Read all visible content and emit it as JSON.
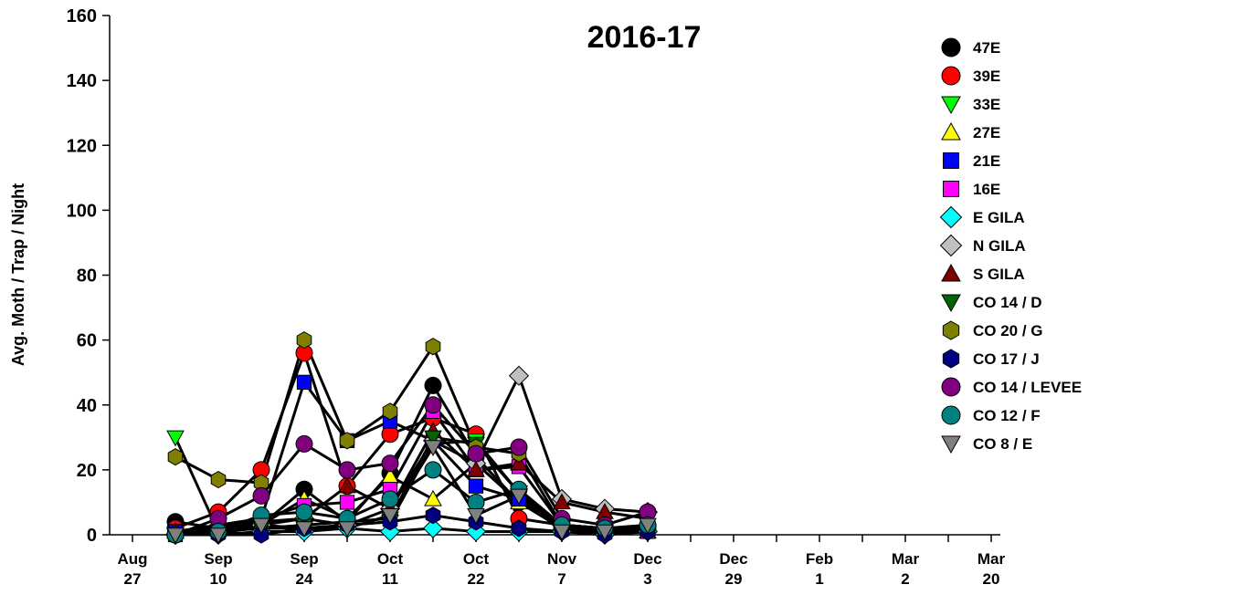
{
  "chart_data": {
    "type": "line",
    "title": "2016-17",
    "y_label": "Avg. Moth / Trap / Night",
    "categories": [
      "Aug 27",
      null,
      "Sep 10",
      null,
      "Sep 24",
      null,
      "Oct 11",
      null,
      "Oct 22",
      null,
      "Nov 7",
      null,
      "Dec 3",
      null,
      "Dec 29",
      null,
      "Feb 1",
      null,
      "Mar 2",
      null,
      "Mar 20"
    ],
    "ylim": [
      0,
      160
    ],
    "yticks": [
      0,
      20,
      40,
      60,
      80,
      100,
      120,
      140,
      160
    ],
    "grid": false,
    "legend": "right",
    "line_color": "#000000",
    "series": [
      {
        "name": "47E",
        "color": "#000000",
        "marker": "circle",
        "values": [
          null,
          4,
          2,
          3,
          14,
          4,
          19,
          46,
          24,
          10,
          2,
          1,
          2,
          null,
          null,
          null,
          null,
          null,
          null,
          null,
          null
        ]
      },
      {
        "name": "39E",
        "color": "#ff0000",
        "marker": "circle",
        "values": [
          null,
          2,
          7,
          20,
          56,
          15,
          31,
          36,
          31,
          5,
          3,
          2,
          2,
          null,
          null,
          null,
          null,
          null,
          null,
          null,
          null
        ]
      },
      {
        "name": "33E",
        "color": "#00ff00",
        "marker": "triangle-down",
        "values": [
          null,
          30,
          1,
          2,
          2,
          3,
          4,
          28,
          29,
          13,
          2,
          1,
          1,
          null,
          null,
          null,
          null,
          null,
          null,
          null,
          null
        ]
      },
      {
        "name": "27E",
        "color": "#ffff00",
        "marker": "triangle-up",
        "values": [
          null,
          1,
          2,
          3,
          11,
          5,
          18,
          11,
          22,
          10,
          3,
          2,
          1,
          null,
          null,
          null,
          null,
          null,
          null,
          null,
          null
        ]
      },
      {
        "name": "21E",
        "color": "#0000ff",
        "marker": "square",
        "values": [
          null,
          1,
          3,
          5,
          47,
          29,
          35,
          29,
          15,
          11,
          2,
          1,
          2,
          null,
          null,
          null,
          null,
          null,
          null,
          null,
          null
        ]
      },
      {
        "name": "16E",
        "color": "#ff00ff",
        "marker": "square",
        "values": [
          null,
          0,
          2,
          5,
          9,
          10,
          14,
          38,
          20,
          21,
          3,
          1,
          1,
          null,
          null,
          null,
          null,
          null,
          null,
          null,
          null
        ]
      },
      {
        "name": "E GILA",
        "color": "#00ffff",
        "marker": "diamond",
        "values": [
          null,
          0,
          0,
          1,
          1,
          2,
          1,
          2,
          1,
          1,
          1,
          0,
          1,
          null,
          null,
          null,
          null,
          null,
          null,
          null,
          null
        ]
      },
      {
        "name": "N GILA",
        "color": "#c0c0c0",
        "marker": "diamond",
        "values": [
          null,
          0,
          1,
          3,
          5,
          3,
          8,
          29,
          22,
          49,
          11,
          8,
          7,
          null,
          null,
          null,
          null,
          null,
          null,
          null,
          null
        ]
      },
      {
        "name": "S GILA",
        "color": "#800000",
        "marker": "triangle-up",
        "values": [
          null,
          1,
          2,
          4,
          5,
          15,
          8,
          32,
          20,
          22,
          10,
          7,
          5,
          null,
          null,
          null,
          null,
          null,
          null,
          null,
          null
        ]
      },
      {
        "name": "CO 14 / D",
        "color": "#006400",
        "marker": "triangle-down",
        "values": [
          null,
          0,
          1,
          2,
          3,
          4,
          5,
          30,
          28,
          13,
          3,
          2,
          1,
          null,
          null,
          null,
          null,
          null,
          null,
          null,
          null
        ]
      },
      {
        "name": "CO 20 / G",
        "color": "#808000",
        "marker": "hexagon",
        "values": [
          null,
          24,
          17,
          16,
          60,
          29,
          38,
          58,
          27,
          25,
          3,
          2,
          1,
          null,
          null,
          null,
          null,
          null,
          null,
          null,
          null
        ]
      },
      {
        "name": "CO 17 / J",
        "color": "#000080",
        "marker": "hexagon",
        "values": [
          null,
          0,
          0,
          0,
          2,
          3,
          4,
          6,
          4,
          2,
          1,
          0,
          1,
          null,
          null,
          null,
          null,
          null,
          null,
          null,
          null
        ]
      },
      {
        "name": "CO 14 / LEVEE",
        "color": "#800080",
        "marker": "circle",
        "values": [
          null,
          0,
          5,
          12,
          28,
          20,
          22,
          40,
          25,
          27,
          5,
          3,
          7,
          null,
          null,
          null,
          null,
          null,
          null,
          null,
          null
        ]
      },
      {
        "name": "CO 12 / F",
        "color": "#008080",
        "marker": "circle",
        "values": [
          null,
          0,
          1,
          6,
          7,
          5,
          11,
          20,
          10,
          14,
          3,
          2,
          3,
          null,
          null,
          null,
          null,
          null,
          null,
          null,
          null
        ]
      },
      {
        "name": "CO 8 / E",
        "color": "#808080",
        "marker": "triangle-down",
        "values": [
          null,
          0,
          0,
          3,
          2,
          2,
          6,
          27,
          6,
          12,
          1,
          1,
          3,
          null,
          null,
          null,
          null,
          null,
          null,
          null,
          null
        ]
      }
    ]
  }
}
